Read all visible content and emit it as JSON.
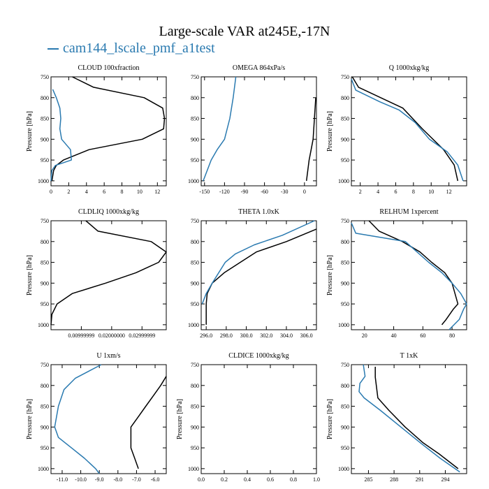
{
  "title": "Large-scale VAR at245E,-17N",
  "legend": {
    "label": "cam144_lscale_pmf_a1test",
    "color": "#2a7ab0"
  },
  "colors": {
    "case": "#2a7ab0",
    "reference": "#000000"
  },
  "chart_data": [
    {
      "type": "line",
      "title": "CLOUD  100xfraction",
      "ylabel": "Pressure [hPa]",
      "xlim": [
        0,
        13
      ],
      "ylim": [
        1012,
        750
      ],
      "xticks": [
        {
          "v": 0,
          "label": "0"
        },
        {
          "v": 2,
          "label": "2"
        },
        {
          "v": 4,
          "label": "4"
        },
        {
          "v": 6,
          "label": "6"
        },
        {
          "v": 8,
          "label": "8"
        },
        {
          "v": 10,
          "label": "10"
        },
        {
          "v": 12,
          "label": "12"
        }
      ],
      "yticks": [
        {
          "v": 750,
          "label": "750"
        },
        {
          "v": 800,
          "label": "800"
        },
        {
          "v": 850,
          "label": "850"
        },
        {
          "v": 900,
          "label": "900"
        },
        {
          "v": 950,
          "label": "950"
        },
        {
          "v": 1000,
          "label": "1000"
        }
      ],
      "series": [
        {
          "color": "#000000",
          "x": [
            2.4,
            4.8,
            10.5,
            12.6,
            12.8,
            12.7,
            10.3,
            4.3,
            1.4,
            0.6,
            0.3,
            0.1
          ],
          "y": [
            750,
            775,
            800,
            825,
            850,
            875,
            900,
            925,
            950,
            963,
            975,
            1000
          ]
        },
        {
          "color": "#2a7ab0",
          "x": [
            0.2,
            0.6,
            1.0,
            1.1,
            1.0,
            1.2,
            2.2,
            2.3,
            0.5,
            0.1,
            0.0
          ],
          "y": [
            780,
            800,
            825,
            850,
            875,
            900,
            925,
            950,
            963,
            975,
            1000
          ]
        }
      ]
    },
    {
      "type": "line",
      "title": "OMEGA  864xPa/s",
      "ylabel": "",
      "xlim": [
        -155,
        18
      ],
      "ylim": [
        1012,
        750
      ],
      "xticks": [
        {
          "v": -150,
          "label": "-150"
        },
        {
          "v": -120,
          "label": "-120"
        },
        {
          "v": -90,
          "label": "-90"
        },
        {
          "v": -60,
          "label": "-60"
        },
        {
          "v": -30,
          "label": "-30"
        },
        {
          "v": 0,
          "label": "0"
        }
      ],
      "yticks": [
        {
          "v": 750,
          "label": "750"
        },
        {
          "v": 800,
          "label": "800"
        },
        {
          "v": 850,
          "label": "850"
        },
        {
          "v": 900,
          "label": "900"
        },
        {
          "v": 950,
          "label": "950"
        },
        {
          "v": 1000,
          "label": "1000"
        }
      ],
      "series": [
        {
          "color": "#000000",
          "x": [
            17,
            15,
            13,
            10,
            7,
            3
          ],
          "y": [
            800,
            850,
            900,
            925,
            950,
            1000
          ]
        },
        {
          "color": "#2a7ab0",
          "x": [
            -103,
            -107,
            -112,
            -120,
            -131,
            -140,
            -152
          ],
          "y": [
            750,
            800,
            850,
            900,
            925,
            950,
            1000
          ]
        }
      ]
    },
    {
      "type": "line",
      "title": "Q  1000xkg/kg",
      "ylabel": "Pressure [hPa]",
      "xlim": [
        1,
        14
      ],
      "ylim": [
        1012,
        750
      ],
      "xticks": [
        {
          "v": 2,
          "label": "2"
        },
        {
          "v": 4,
          "label": "4"
        },
        {
          "v": 6,
          "label": "6"
        },
        {
          "v": 8,
          "label": "8"
        },
        {
          "v": 10,
          "label": "10"
        },
        {
          "v": 12,
          "label": "12"
        }
      ],
      "yticks": [
        {
          "v": 750,
          "label": "750"
        },
        {
          "v": 800,
          "label": "800"
        },
        {
          "v": 850,
          "label": "850"
        },
        {
          "v": 900,
          "label": "900"
        },
        {
          "v": 950,
          "label": "950"
        },
        {
          "v": 1000,
          "label": "1000"
        }
      ],
      "series": [
        {
          "color": "#000000",
          "x": [
            1.1,
            1.8,
            4.3,
            6.8,
            9.0,
            11.4,
            12.6,
            13.0
          ],
          "y": [
            750,
            775,
            800,
            825,
            875,
            925,
            962,
            1000
          ]
        },
        {
          "color": "#2a7ab0",
          "x": [
            1.0,
            1.5,
            4.2,
            6.4,
            8.2,
            9.8,
            11.8,
            13.0,
            13.6
          ],
          "y": [
            755,
            782,
            810,
            830,
            860,
            900,
            930,
            962,
            1000
          ]
        }
      ]
    },
    {
      "type": "line",
      "title": "CLDLIQ  1000xkg/kg",
      "ylabel": "Pressure [hPa]",
      "xlim": [
        0,
        0.038
      ],
      "ylim": [
        1012,
        750
      ],
      "xticks": [
        {
          "v": 0.01,
          "label": "0.00999999"
        },
        {
          "v": 0.02,
          "label": "0.02000000"
        },
        {
          "v": 0.03,
          "label": "0.02999999"
        }
      ],
      "yticks": [
        {
          "v": 750,
          "label": "750"
        },
        {
          "v": 800,
          "label": "800"
        },
        {
          "v": 850,
          "label": "850"
        },
        {
          "v": 900,
          "label": "900"
        },
        {
          "v": 950,
          "label": "950"
        },
        {
          "v": 1000,
          "label": "1000"
        }
      ],
      "series": [
        {
          "color": "#000000",
          "x": [
            0.0115,
            0.0155,
            0.033,
            0.038,
            0.0355,
            0.028,
            0.018,
            0.007,
            0.002,
            0.0003,
            0.0
          ],
          "y": [
            750,
            775,
            800,
            825,
            850,
            875,
            900,
            925,
            950,
            975,
            1000
          ]
        }
      ]
    },
    {
      "type": "line",
      "title": "THETA  1.0xK",
      "ylabel": "",
      "xlim": [
        295.5,
        307.0
      ],
      "ylim": [
        1012,
        750
      ],
      "xticks": [
        {
          "v": 296,
          "label": "296.0"
        },
        {
          "v": 298,
          "label": "298.0"
        },
        {
          "v": 300,
          "label": "300.0"
        },
        {
          "v": 302,
          "label": "302.0"
        },
        {
          "v": 304,
          "label": "304.0"
        },
        {
          "v": 306,
          "label": "306.0"
        }
      ],
      "yticks": [
        {
          "v": 750,
          "label": "750"
        },
        {
          "v": 800,
          "label": "800"
        },
        {
          "v": 850,
          "label": "850"
        },
        {
          "v": 900,
          "label": "900"
        },
        {
          "v": 950,
          "label": "950"
        },
        {
          "v": 1000,
          "label": "1000"
        }
      ],
      "series": [
        {
          "color": "#000000",
          "x": [
            307.0,
            304.0,
            301.0,
            299.4,
            297.8,
            296.6,
            296.1,
            296.0,
            296.0
          ],
          "y": [
            770,
            800,
            825,
            850,
            875,
            900,
            925,
            950,
            1000
          ]
        },
        {
          "color": "#2a7ab0",
          "x": [
            306.8,
            303.6,
            300.8,
            298.9,
            297.9,
            296.6,
            296.0,
            295.6
          ],
          "y": [
            750,
            785,
            808,
            830,
            850,
            900,
            925,
            950
          ]
        }
      ]
    },
    {
      "type": "line",
      "title": "RELHUM  1xpercent",
      "ylabel": "Pressure [hPa]",
      "xlim": [
        11,
        90
      ],
      "ylim": [
        1012,
        750
      ],
      "xticks": [
        {
          "v": 20,
          "label": "20"
        },
        {
          "v": 40,
          "label": "40"
        },
        {
          "v": 60,
          "label": "60"
        },
        {
          "v": 80,
          "label": "80"
        }
      ],
      "yticks": [
        {
          "v": 750,
          "label": "750"
        },
        {
          "v": 800,
          "label": "800"
        },
        {
          "v": 850,
          "label": "850"
        },
        {
          "v": 900,
          "label": "900"
        },
        {
          "v": 950,
          "label": "950"
        },
        {
          "v": 1000,
          "label": "1000"
        }
      ],
      "series": [
        {
          "color": "#000000",
          "x": [
            23,
            30,
            46,
            58,
            66,
            75,
            80,
            84,
            81,
            76,
            73
          ],
          "y": [
            750,
            775,
            800,
            825,
            850,
            875,
            900,
            950,
            962,
            987,
            1000
          ]
        },
        {
          "color": "#2a7ab0",
          "x": [
            11,
            14,
            48,
            56,
            64,
            73,
            80,
            86,
            90,
            88,
            85,
            78
          ],
          "y": [
            755,
            780,
            800,
            825,
            850,
            875,
            900,
            925,
            950,
            962,
            987,
            1012
          ]
        }
      ]
    },
    {
      "type": "line",
      "title": "U  1xm/s",
      "ylabel": "Pressure [hPa]",
      "xlim": [
        -11.6,
        -5.4
      ],
      "ylim": [
        1012,
        750
      ],
      "xticks": [
        {
          "v": -11,
          "label": "-11.0"
        },
        {
          "v": -10,
          "label": "-10.0"
        },
        {
          "v": -9,
          "label": "-9.0"
        },
        {
          "v": -8,
          "label": "-8.0"
        },
        {
          "v": -7,
          "label": "-7.0"
        },
        {
          "v": -6,
          "label": "-6.0"
        }
      ],
      "yticks": [
        {
          "v": 750,
          "label": "750"
        },
        {
          "v": 800,
          "label": "800"
        },
        {
          "v": 850,
          "label": "850"
        },
        {
          "v": 900,
          "label": "900"
        },
        {
          "v": 950,
          "label": "950"
        },
        {
          "v": 1000,
          "label": "1000"
        }
      ],
      "series": [
        {
          "color": "#000000",
          "x": [
            -5.4,
            -5.7,
            -6.1,
            -6.5,
            -6.9,
            -7.3,
            -7.3,
            -7.1,
            -6.9
          ],
          "y": [
            778,
            800,
            825,
            850,
            875,
            900,
            950,
            975,
            1000
          ]
        },
        {
          "color": "#2a7ab0",
          "x": [
            -8.9,
            -10.3,
            -10.9,
            -11.2,
            -11.4,
            -11.2,
            -10.5,
            -9.8,
            -9.2,
            -9.0
          ],
          "y": [
            750,
            783,
            810,
            850,
            900,
            925,
            950,
            975,
            1000,
            1012
          ]
        }
      ]
    },
    {
      "type": "line",
      "title": "CLDICE  1000xkg/kg",
      "ylabel": "Pressure [hPa]",
      "xlim": [
        0,
        1
      ],
      "ylim": [
        1012,
        750
      ],
      "xticks": [
        {
          "v": 0,
          "label": "0.0"
        },
        {
          "v": 0.2,
          "label": "0.2"
        },
        {
          "v": 0.4,
          "label": "0.4"
        },
        {
          "v": 0.6,
          "label": "0.6"
        },
        {
          "v": 0.8,
          "label": "0.8"
        },
        {
          "v": 1.0,
          "label": "1.0"
        }
      ],
      "yticks": [
        {
          "v": 750,
          "label": "750"
        },
        {
          "v": 800,
          "label": "800"
        },
        {
          "v": 850,
          "label": "850"
        },
        {
          "v": 900,
          "label": "900"
        },
        {
          "v": 950,
          "label": "950"
        },
        {
          "v": 1000,
          "label": "1000"
        }
      ],
      "series": []
    },
    {
      "type": "line",
      "title": "T  1xK",
      "ylabel": "Pressure [hPa]",
      "xlim": [
        283,
        296.5
      ],
      "ylim": [
        1012,
        750
      ],
      "xticks": [
        {
          "v": 285,
          "label": "285"
        },
        {
          "v": 288,
          "label": "288"
        },
        {
          "v": 291,
          "label": "291"
        },
        {
          "v": 294,
          "label": "294"
        }
      ],
      "yticks": [
        {
          "v": 750,
          "label": "750"
        },
        {
          "v": 800,
          "label": "800"
        },
        {
          "v": 850,
          "label": "850"
        },
        {
          "v": 900,
          "label": "900"
        },
        {
          "v": 950,
          "label": "950"
        },
        {
          "v": 1000,
          "label": "1000"
        }
      ],
      "series": [
        {
          "color": "#000000",
          "x": [
            285.8,
            285.8,
            286.1,
            287.4,
            289.3,
            291.4,
            293.3,
            295.5
          ],
          "y": [
            755,
            780,
            830,
            860,
            900,
            938,
            965,
            1000
          ]
        },
        {
          "color": "#2a7ab0",
          "x": [
            284.4,
            284.6,
            284.0,
            283.9,
            284.5,
            286.4,
            288.8,
            291.2,
            293.4,
            295.7
          ],
          "y": [
            750,
            778,
            795,
            815,
            830,
            860,
            900,
            940,
            975,
            1008
          ]
        }
      ]
    }
  ]
}
